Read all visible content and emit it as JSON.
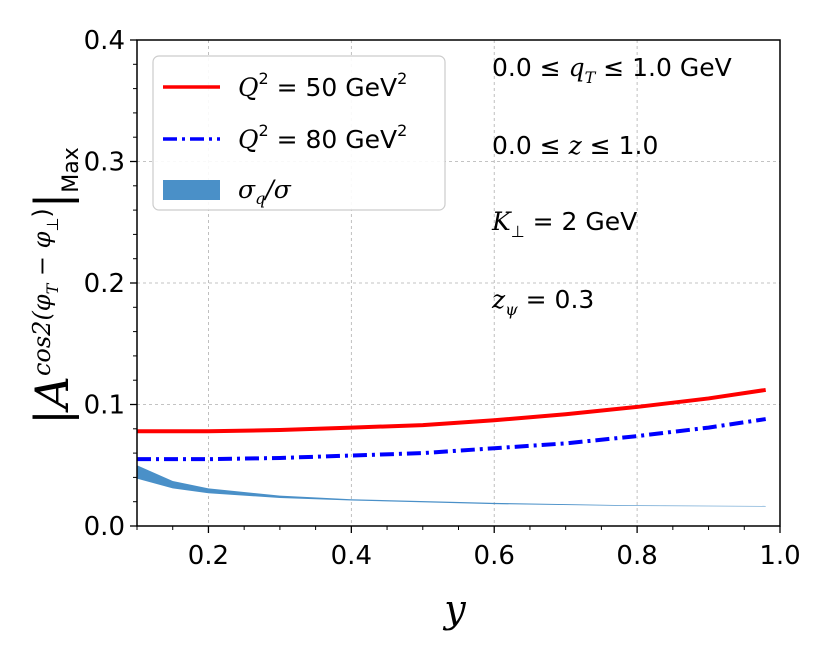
{
  "chart_data": {
    "type": "line",
    "xlabel": "y",
    "ylabel_parts": {
      "main": "A",
      "superscript": "cos2(φ",
      "sup_sub_T": "T",
      "sup_minus": " − φ",
      "sup_sub_perp": "⊥",
      "sup_close": ")",
      "subscript": "Max"
    },
    "xlim": [
      0.1,
      1.0
    ],
    "ylim": [
      0.0,
      0.4
    ],
    "x_ticks": [
      0.2,
      0.4,
      0.6,
      0.8,
      1.0
    ],
    "x_tick_labels": [
      "0.2",
      "0.4",
      "0.6",
      "0.8",
      "1.0"
    ],
    "y_ticks": [
      0.0,
      0.1,
      0.2,
      0.3,
      0.4
    ],
    "y_tick_labels": [
      "0.0",
      "0.1",
      "0.2",
      "0.3",
      "0.4"
    ],
    "grid": true,
    "legend_position": "top-left",
    "series": [
      {
        "name": "Q^2 = 50 GeV^2",
        "color": "#ff0000",
        "style": "solid",
        "x": [
          0.1,
          0.2,
          0.3,
          0.4,
          0.5,
          0.6,
          0.7,
          0.8,
          0.9,
          0.98
        ],
        "y": [
          0.078,
          0.078,
          0.079,
          0.081,
          0.083,
          0.087,
          0.092,
          0.098,
          0.105,
          0.112
        ]
      },
      {
        "name": "Q^2 = 80 GeV^2",
        "color": "#0000ff",
        "style": "dashdot",
        "x": [
          0.1,
          0.2,
          0.3,
          0.4,
          0.5,
          0.6,
          0.7,
          0.8,
          0.9,
          0.98
        ],
        "y": [
          0.055,
          0.055,
          0.056,
          0.058,
          0.06,
          0.064,
          0.068,
          0.074,
          0.081,
          0.088
        ]
      },
      {
        "name": "σ_q/σ",
        "color": "#4a90c8",
        "style": "band",
        "x": [
          0.1,
          0.15,
          0.2,
          0.3,
          0.4,
          0.6,
          0.8,
          0.98
        ],
        "y_upper": [
          0.05,
          0.037,
          0.031,
          0.025,
          0.022,
          0.019,
          0.017,
          0.0165
        ],
        "y_lower": [
          0.039,
          0.031,
          0.027,
          0.023,
          0.021,
          0.018,
          0.0165,
          0.016
        ]
      }
    ],
    "legend": {
      "entries": [
        {
          "symbol": "Q",
          "sup1": "2",
          "text": " = 50 GeV",
          "sup2": "2"
        },
        {
          "symbol": "Q",
          "sup1": "2",
          "text": " = 80 GeV",
          "sup2": "2"
        },
        {
          "sigma": "σ",
          "sub": "q",
          "slash": "/σ"
        }
      ]
    },
    "annotations": {
      "qt_range": {
        "left": "0.0 ≤ ",
        "var": "q",
        "sub": "T",
        "right": " ≤ 1.0 GeV"
      },
      "z_range": {
        "left": "0.0 ≤ ",
        "var": "z",
        "right": " ≤ 1.0"
      },
      "kperp": {
        "var": "K",
        "sub": "⊥",
        "right": " = 2 GeV"
      },
      "zpsi": {
        "var": "z",
        "sub": "ψ",
        "right": " = 0.3"
      }
    }
  }
}
